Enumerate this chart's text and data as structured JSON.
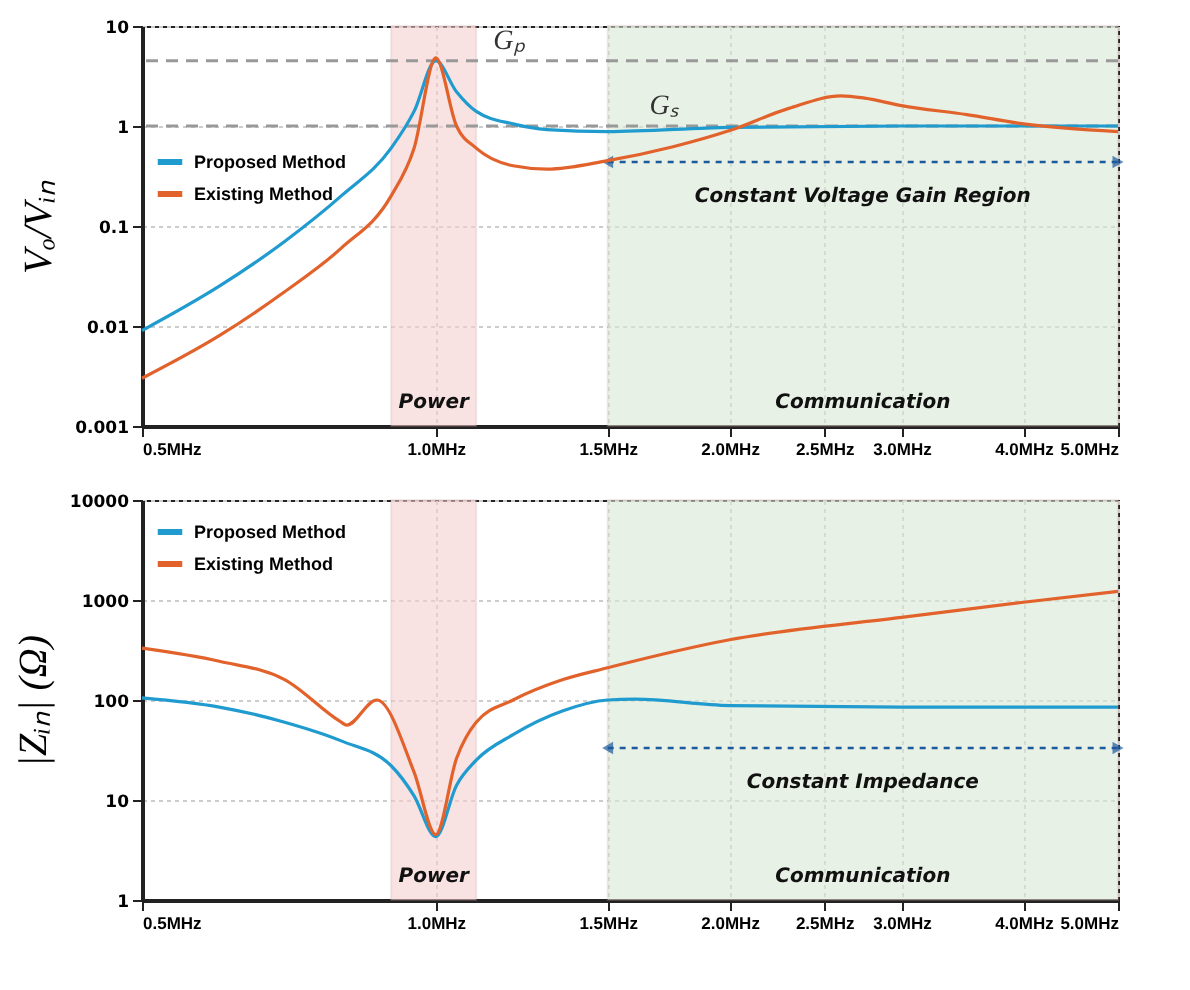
{
  "chart_data": [
    {
      "type": "line",
      "ylabel": "Vₒ/Vᵢₙ",
      "log": "xy",
      "grid": true,
      "legend": "top left",
      "marker": "none",
      "line_style": "solid",
      "xlim": [
        0.5,
        5
      ],
      "xticks": [
        {
          "value": 0.5,
          "label": "0.5MHz"
        },
        {
          "value": 1,
          "label": "1.0MHz"
        },
        {
          "value": 1.5,
          "label": "1.5MHz"
        },
        {
          "value": 2,
          "label": "2.0MHz"
        },
        {
          "value": 2.5,
          "label": "2.5MHz"
        },
        {
          "value": 3,
          "label": "3.0MHz"
        },
        {
          "value": 4,
          "label": "4.0MHz"
        },
        {
          "value": 5,
          "label": "5.0MHz"
        }
      ],
      "ylim": [
        0.001,
        10
      ],
      "yticks": [
        0.001,
        0.01,
        0.1,
        1,
        10
      ],
      "series": [
        {
          "name": "Proposed Method",
          "color": "#1f9bcf",
          "x": [
            0.5,
            0.6,
            0.7,
            0.8,
            0.9,
            0.95,
            1.0,
            1.05,
            1.1,
            1.2,
            1.3,
            1.5,
            2.0,
            3.0,
            4.0,
            5.0
          ],
          "values": [
            0.009,
            0.025,
            0.07,
            0.2,
            0.6,
            1.4,
            4.5,
            2.2,
            1.4,
            1.05,
            0.92,
            0.88,
            0.97,
            1.0,
            1.0,
            1.0
          ]
        },
        {
          "name": "Existing Method",
          "color": "#e2622c",
          "x": [
            0.5,
            0.6,
            0.7,
            0.8,
            0.9,
            0.95,
            1.0,
            1.05,
            1.1,
            1.2,
            1.3,
            1.5,
            1.75,
            2.0,
            2.3,
            2.6,
            2.75,
            3.0,
            3.5,
            4.0,
            5.0
          ],
          "values": [
            0.003,
            0.008,
            0.022,
            0.06,
            0.2,
            0.6,
            4.8,
            1.0,
            0.6,
            0.4,
            0.37,
            0.45,
            0.62,
            0.9,
            1.5,
            2.0,
            1.9,
            1.6,
            1.3,
            1.05,
            0.88
          ]
        }
      ],
      "ref_lines": [
        {
          "axis": "y",
          "value": 4.5,
          "label": "Gₚ",
          "color": "#999999",
          "line_style": "dashed"
        },
        {
          "axis": "y",
          "value": 1,
          "label": "Gₛ",
          "color": "#999999",
          "line_style": "dashed"
        }
      ],
      "bands": [
        {
          "axis": "x",
          "from": 0.9,
          "to": 1.1,
          "label": "Power",
          "color": "#f6cfcf"
        },
        {
          "axis": "x",
          "from": 1.5,
          "to": 5,
          "label": "Communication",
          "color": "#d9e9d5"
        }
      ],
      "annotations": [
        "Constant Voltage Gain Region"
      ]
    },
    {
      "type": "line",
      "ylabel": "|Zᵢₙ| (Ω)",
      "log": "xy",
      "grid": true,
      "legend": "top left",
      "marker": "none",
      "line_style": "solid",
      "xlim": [
        0.5,
        5
      ],
      "xticks": [
        {
          "value": 0.5,
          "label": "0.5MHz"
        },
        {
          "value": 1,
          "label": "1.0MHz"
        },
        {
          "value": 1.5,
          "label": "1.5MHz"
        },
        {
          "value": 2,
          "label": "2.0MHz"
        },
        {
          "value": 2.5,
          "label": "2.5MHz"
        },
        {
          "value": 3,
          "label": "3.0MHz"
        },
        {
          "value": 4,
          "label": "4.0MHz"
        },
        {
          "value": 5,
          "label": "5.0MHz"
        }
      ],
      "ylim": [
        1,
        10000
      ],
      "yticks": [
        1,
        10,
        100,
        1000,
        10000
      ],
      "series": [
        {
          "name": "Proposed Method",
          "color": "#1f9bcf",
          "x": [
            0.5,
            0.6,
            0.7,
            0.8,
            0.9,
            0.95,
            1.0,
            1.05,
            1.1,
            1.2,
            1.35,
            1.5,
            1.6,
            2.0,
            3.0,
            5.0
          ],
          "values": [
            105,
            85,
            60,
            39,
            22,
            11,
            4.3,
            14,
            25,
            45,
            78,
            100,
            102,
            88,
            85,
            85
          ]
        },
        {
          "name": "Existing Method",
          "color": "#e2622c",
          "x": [
            0.5,
            0.6,
            0.7,
            0.8,
            0.81,
            0.87,
            0.95,
            1.0,
            1.05,
            1.1,
            1.2,
            1.35,
            1.5,
            2.0,
            3.0,
            4.0,
            5.0
          ],
          "values": [
            330,
            244,
            160,
            60,
            56,
            100,
            19,
            4.5,
            26,
            60,
            100,
            160,
            210,
            400,
            670,
            950,
            1220
          ]
        }
      ],
      "bands": [
        {
          "axis": "x",
          "from": 0.9,
          "to": 1.1,
          "label": "Power",
          "color": "#f6cfcf"
        },
        {
          "axis": "x",
          "from": 1.5,
          "to": 5,
          "label": "Communication",
          "color": "#d9e9d5"
        }
      ],
      "annotations": [
        "Constant Impedance"
      ]
    }
  ]
}
